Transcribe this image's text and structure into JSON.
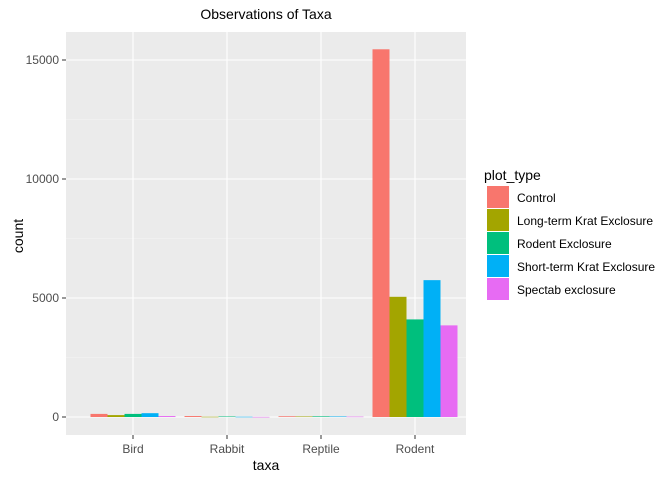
{
  "chart_data": {
    "type": "bar",
    "title": "Observations of Taxa",
    "xlabel": "taxa",
    "ylabel": "count",
    "categories": [
      "Bird",
      "Rabbit",
      "Reptile",
      "Rodent"
    ],
    "ylim": [
      0,
      16200
    ],
    "yticks": [
      0,
      5000,
      10000,
      15000
    ],
    "grid": true,
    "legend": {
      "title": "plot_type",
      "position": "right"
    },
    "series": [
      {
        "name": "Control",
        "color": "#F8766D",
        "values": [
          130,
          40,
          30,
          15450
        ]
      },
      {
        "name": "Long-term Krat Exclosure",
        "color": "#A3A500",
        "values": [
          80,
          10,
          20,
          5050
        ]
      },
      {
        "name": "Rodent Exclosure",
        "color": "#00BF7D",
        "values": [
          130,
          20,
          25,
          4100
        ]
      },
      {
        "name": "Short-term Krat Exclosure",
        "color": "#00B0F6",
        "values": [
          160,
          10,
          20,
          5750
        ]
      },
      {
        "name": "Spectab exclosure",
        "color": "#E76BF3",
        "values": [
          40,
          5,
          15,
          3850
        ]
      }
    ]
  }
}
